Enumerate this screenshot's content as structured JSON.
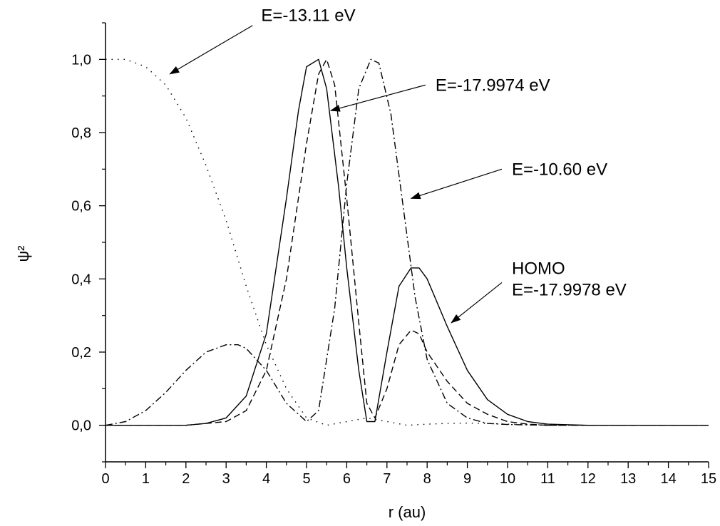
{
  "chart_data": {
    "type": "line",
    "xlabel": "r (au)",
    "ylabel": "ψ²",
    "xlim": [
      0,
      15
    ],
    "ylim": [
      -0.1,
      1.1
    ],
    "x_ticks": [
      0,
      1,
      2,
      3,
      4,
      5,
      6,
      7,
      8,
      9,
      10,
      11,
      12,
      13,
      14,
      15
    ],
    "x_tick_labels": [
      "0",
      "1",
      "2",
      "3",
      "4",
      "5",
      "6",
      "7",
      "8",
      "9",
      "10",
      "11",
      "12",
      "13",
      "14",
      "15"
    ],
    "y_ticks": [
      0.0,
      0.2,
      0.4,
      0.6,
      0.8,
      1.0
    ],
    "y_tick_labels": [
      "0,0",
      "0,2",
      "0,4",
      "0,6",
      "0,8",
      "1,0"
    ],
    "grid": false,
    "series": [
      {
        "line_style": "solid",
        "x": [
          0,
          1,
          2,
          2.5,
          3,
          3.5,
          4,
          4.5,
          4.8,
          5,
          5.3,
          5.5,
          5.8,
          6,
          6.3,
          6.5,
          6.7,
          7,
          7.3,
          7.6,
          7.8,
          8,
          8.5,
          9,
          9.5,
          10,
          10.5,
          11,
          12,
          13,
          15
        ],
        "y": [
          0,
          0,
          0,
          0.005,
          0.02,
          0.08,
          0.25,
          0.62,
          0.86,
          0.98,
          1.0,
          0.92,
          0.65,
          0.43,
          0.15,
          0.01,
          0.01,
          0.2,
          0.38,
          0.43,
          0.43,
          0.4,
          0.27,
          0.15,
          0.07,
          0.03,
          0.01,
          0.003,
          0,
          0,
          0
        ]
      },
      {
        "line_style": "dashed",
        "x": [
          0,
          2,
          3,
          3.5,
          4,
          4.5,
          5,
          5.3,
          5.5,
          5.7,
          6,
          6.3,
          6.5,
          6.7,
          7,
          7.3,
          7.6,
          7.8,
          8,
          8.5,
          9,
          9.5,
          10,
          10.5,
          11,
          12,
          15
        ],
        "y": [
          0,
          0,
          0.01,
          0.04,
          0.15,
          0.4,
          0.77,
          0.96,
          1.0,
          0.93,
          0.62,
          0.28,
          0.06,
          0.02,
          0.1,
          0.22,
          0.26,
          0.25,
          0.2,
          0.12,
          0.06,
          0.03,
          0.01,
          0.003,
          0,
          0,
          0
        ]
      },
      {
        "line_style": "dash-dot",
        "x": [
          0,
          0.5,
          1,
          1.5,
          2,
          2.5,
          3,
          3.3,
          3.5,
          4,
          4.5,
          5,
          5.3,
          5.7,
          6,
          6.3,
          6.6,
          6.8,
          7.1,
          7.4,
          7.7,
          8,
          8.5,
          9,
          9.5,
          10,
          11,
          12,
          15
        ],
        "y": [
          0,
          0.01,
          0.04,
          0.09,
          0.15,
          0.2,
          0.22,
          0.22,
          0.21,
          0.15,
          0.06,
          0.01,
          0.04,
          0.32,
          0.66,
          0.92,
          1.0,
          0.99,
          0.85,
          0.6,
          0.35,
          0.18,
          0.06,
          0.02,
          0.005,
          0.002,
          0,
          0,
          0
        ]
      },
      {
        "line_style": "dotted",
        "x": [
          0,
          0.5,
          1,
          1.5,
          2,
          2.5,
          3,
          3.5,
          4,
          4.5,
          5,
          5.5,
          6,
          6.5,
          7,
          7.5,
          8,
          8.5,
          9,
          9.5,
          10,
          11,
          12,
          15
        ],
        "y": [
          1.0,
          1.0,
          0.98,
          0.93,
          0.84,
          0.71,
          0.56,
          0.38,
          0.22,
          0.1,
          0.02,
          0.0,
          0.01,
          0.02,
          0.01,
          0.0,
          0.003,
          0.005,
          0.006,
          0.005,
          0.003,
          0.001,
          0,
          0
        ]
      }
    ],
    "annotations": [
      {
        "lines": [
          "E=-13.11 eV"
        ],
        "target_x": 1.6,
        "target_y": 0.96,
        "text_x": 3.8,
        "text_y": 1.12
      },
      {
        "lines": [
          "E=-17.9974 eV"
        ],
        "target_x": 5.6,
        "target_y": 0.86,
        "text_x": 8.1,
        "text_y": 0.93
      },
      {
        "lines": [
          "E=-10.60 eV"
        ],
        "target_x": 7.6,
        "target_y": 0.62,
        "text_x": 10.0,
        "text_y": 0.7
      },
      {
        "lines": [
          "HOMO",
          "E=-17.9978 eV"
        ],
        "target_x": 8.6,
        "target_y": 0.28,
        "text_x": 10.0,
        "text_y": 0.39
      }
    ]
  }
}
